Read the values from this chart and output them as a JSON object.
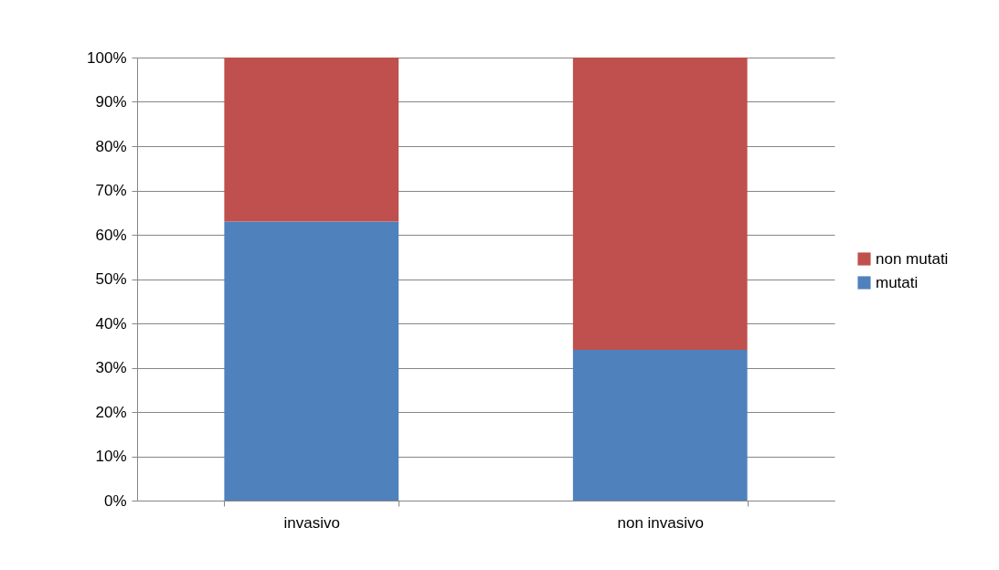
{
  "chart_data": {
    "type": "bar",
    "stacked": true,
    "categories": [
      "invasivo",
      "non invasivo"
    ],
    "series": [
      {
        "name": "mutati",
        "color": "#4f81bd",
        "values": [
          63,
          34
        ]
      },
      {
        "name": "non mutati",
        "color": "#c0504d",
        "values": [
          37,
          66
        ]
      }
    ],
    "ylim": [
      0,
      100
    ],
    "yticks": [
      {
        "value": 0,
        "label": "0%"
      },
      {
        "value": 10,
        "label": "10%"
      },
      {
        "value": 20,
        "label": "20%"
      },
      {
        "value": 30,
        "label": "30%"
      },
      {
        "value": 40,
        "label": "40%"
      },
      {
        "value": 50,
        "label": "50%"
      },
      {
        "value": 60,
        "label": "60%"
      },
      {
        "value": 70,
        "label": "70%"
      },
      {
        "value": 80,
        "label": "80%"
      },
      {
        "value": 90,
        "label": "90%"
      },
      {
        "value": 100,
        "label": "100%"
      }
    ],
    "grid": "y",
    "legend": "right"
  }
}
